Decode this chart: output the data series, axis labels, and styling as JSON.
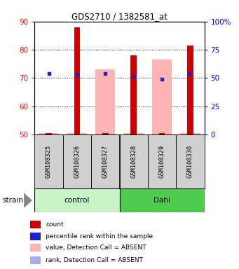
{
  "title": "GDS2710 / 1382581_at",
  "samples": [
    "GSM108325",
    "GSM108326",
    "GSM108327",
    "GSM108328",
    "GSM108329",
    "GSM108330"
  ],
  "ylim": [
    50,
    90
  ],
  "y_left_ticks": [
    50,
    60,
    70,
    80,
    90
  ],
  "y_right_ticks": [
    0,
    25,
    50,
    75,
    100
  ],
  "y_right_labels": [
    "0",
    "25",
    "50",
    "75",
    "100%"
  ],
  "red_values": [
    50.5,
    88.0,
    50.5,
    78.0,
    50.5,
    81.5
  ],
  "pink_values": [
    50.5,
    50.5,
    73.0,
    50.5,
    76.5,
    50.5
  ],
  "blue_values": [
    71.5,
    71.0,
    71.5,
    70.5,
    69.5,
    71.5
  ],
  "light_blue_values": [
    71.5,
    null,
    null,
    null,
    null,
    null
  ],
  "bar_bottom": 50.0,
  "red_color": "#cc0000",
  "pink_color": "#ffb3b3",
  "blue_color": "#2222cc",
  "light_blue_color": "#aaaaee",
  "ctrl_color_light": "#c8f5c8",
  "ctrl_color_dark": "#4dcc4d",
  "legend_items": [
    {
      "color": "#cc0000",
      "label": "count"
    },
    {
      "color": "#2222cc",
      "label": "percentile rank within the sample"
    },
    {
      "color": "#ffb3b3",
      "label": "value, Detection Call = ABSENT"
    },
    {
      "color": "#aaaaee",
      "label": "rank, Detection Call = ABSENT"
    }
  ]
}
